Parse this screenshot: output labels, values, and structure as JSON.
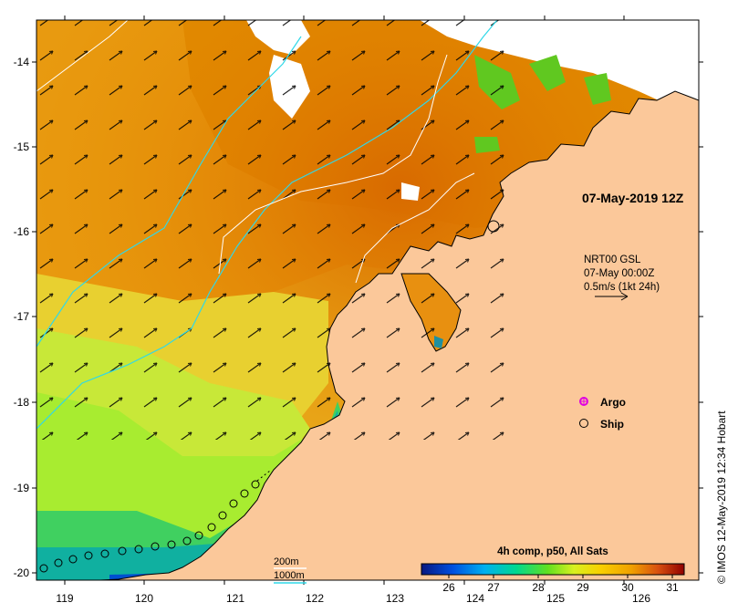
{
  "map": {
    "title": "07-May-2019 12Z",
    "credit": "© IMOS 12-May-2019 12:34 Hobart",
    "lat_labels": [
      "-14",
      "-15",
      "-16",
      "-17",
      "-18",
      "-19",
      "-20"
    ],
    "lon_labels": [
      "119",
      "120",
      "121",
      "122",
      "123",
      "124",
      "125",
      "126"
    ],
    "current_info": {
      "line1": "NRT00 GSL",
      "line2": "07-May 00:00Z",
      "line3": "0.5m/s (1kt 24h)"
    },
    "legend": {
      "argo_label": "Argo",
      "ship_label": "Ship",
      "argo_color": "#e000e0",
      "depth_200": "200m",
      "depth_1000": "1000m",
      "contour_200_color": "#ffffff",
      "contour_1000_color": "#30d8e8"
    },
    "colorbar": {
      "title": "4h comp, p50, All Sats",
      "ticks": [
        "26",
        "27",
        "28",
        "29",
        "30",
        "31"
      ]
    },
    "colors": {
      "land": "#fbc89a",
      "no_data": "#ffffff",
      "sst_warm": "#e89000",
      "sst_cool": "#b8f040",
      "coast_cold": "#1030b0"
    }
  }
}
